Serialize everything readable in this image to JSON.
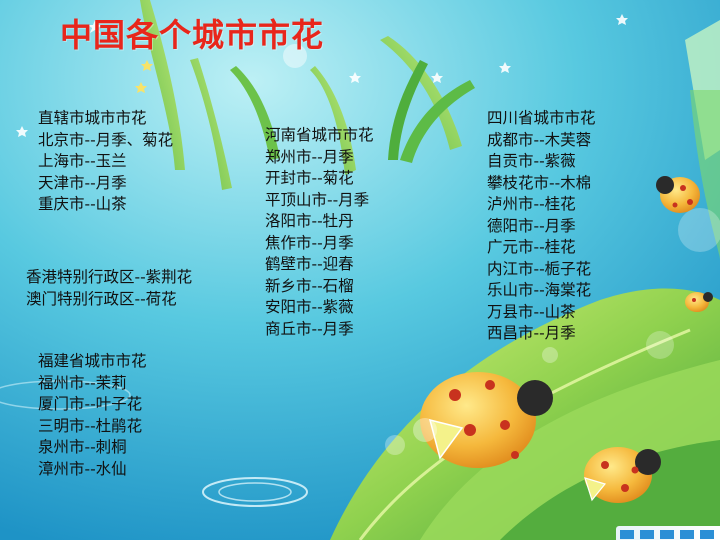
{
  "title": "中国各个城市市花",
  "direct_municipalities": {
    "heading": "直辖市城市市花",
    "items": [
      "北京市--月季、菊花",
      "上海市--玉兰",
      "天津市--月季",
      "重庆市--山茶"
    ]
  },
  "special_regions": {
    "items": [
      "香港特别行政区--紫荆花",
      "澳门特别行政区--荷花"
    ]
  },
  "fujian": {
    "heading": "福建省城市市花",
    "items": [
      "福州市--茉莉",
      "厦门市--叶子花",
      "三明市--杜鹃花",
      "泉州市--刺桐",
      "漳州市--水仙"
    ]
  },
  "henan": {
    "heading": "河南省城市市花",
    "items": [
      "郑州市--月季",
      "开封市--菊花",
      "平顶山市--月季",
      "洛阳市--牡丹",
      "焦作市--月季",
      "鹤壁市--迎春",
      "新乡市--石榴",
      "安阳市--紫薇",
      "商丘市--月季"
    ]
  },
  "sichuan": {
    "heading": "四川省城市市花",
    "items": [
      "成都市--木芙蓉",
      "自贡市--紫薇",
      "攀枝花市--木棉",
      "泸州市--桂花",
      "德阳市--月季",
      "广元市--桂花",
      "内江市--栀子花",
      "乐山市--海棠花",
      "万县市--山茶",
      "西昌市--月季"
    ]
  },
  "colors": {
    "title": "#e8261b",
    "text": "#111111",
    "background": "#4cc3dd",
    "grass": "#4caf3a",
    "ladybug": "#f0a020"
  }
}
